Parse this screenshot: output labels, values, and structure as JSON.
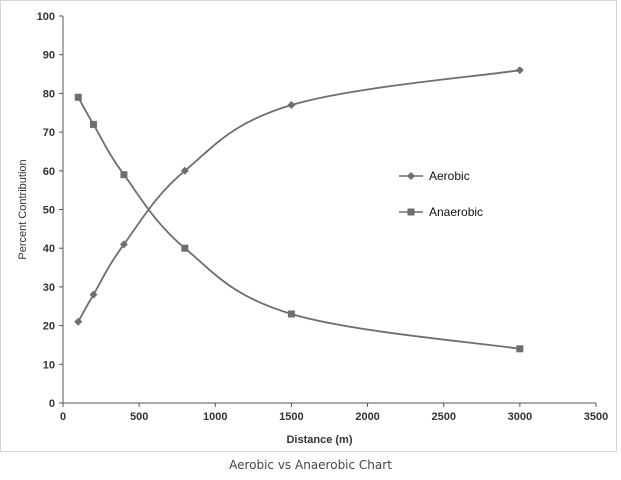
{
  "caption": "Aerobic vs Anaerobic Chart",
  "chart_data": {
    "type": "line",
    "title": "",
    "xlabel": "Distance (m)",
    "ylabel": "Percent Contribution",
    "xlim": [
      0,
      3500
    ],
    "ylim": [
      0,
      100
    ],
    "xticks": [
      0,
      500,
      1000,
      1500,
      2000,
      2500,
      3000,
      3500
    ],
    "yticks": [
      0,
      10,
      20,
      30,
      40,
      50,
      60,
      70,
      80,
      90,
      100
    ],
    "grid": false,
    "legend": "right",
    "series": [
      {
        "name": "Aerobic",
        "marker": "diamond",
        "color": "#6e6e6e",
        "x": [
          100,
          200,
          400,
          800,
          1500,
          3000
        ],
        "values": [
          21,
          28,
          41,
          60,
          77,
          86
        ]
      },
      {
        "name": "Anaerobic",
        "marker": "square",
        "color": "#6e6e6e",
        "x": [
          100,
          200,
          400,
          800,
          1500,
          3000
        ],
        "values": [
          79,
          72,
          59,
          40,
          23,
          14
        ]
      }
    ]
  }
}
